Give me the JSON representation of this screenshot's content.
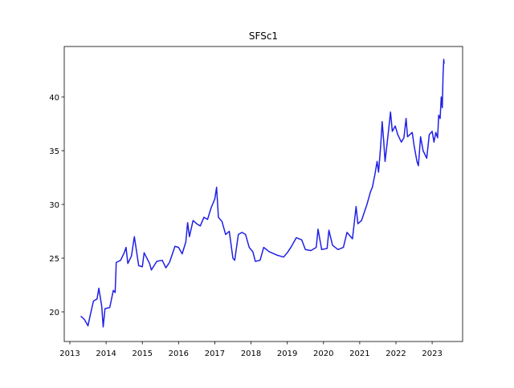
{
  "chart_data": {
    "type": "line",
    "title": "SFSc1",
    "x": [
      2013.3,
      2013.4,
      2013.5,
      2013.55,
      2013.65,
      2013.75,
      2013.8,
      2013.88,
      2013.92,
      2013.97,
      2014.1,
      2014.2,
      2014.25,
      2014.28,
      2014.4,
      2014.5,
      2014.55,
      2014.6,
      2014.7,
      2014.78,
      2014.9,
      2015.0,
      2015.05,
      2015.2,
      2015.25,
      2015.4,
      2015.55,
      2015.65,
      2015.75,
      2015.85,
      2015.9,
      2016.0,
      2016.1,
      2016.2,
      2016.25,
      2016.3,
      2016.4,
      2016.5,
      2016.6,
      2016.7,
      2016.8,
      2016.9,
      2017.0,
      2017.05,
      2017.1,
      2017.2,
      2017.3,
      2017.4,
      2017.5,
      2017.55,
      2017.65,
      2017.75,
      2017.85,
      2017.95,
      2018.05,
      2018.12,
      2018.25,
      2018.35,
      2018.5,
      2018.7,
      2018.9,
      2019.0,
      2019.1,
      2019.25,
      2019.4,
      2019.5,
      2019.65,
      2019.8,
      2019.85,
      2019.95,
      2020.1,
      2020.15,
      2020.25,
      2020.4,
      2020.55,
      2020.65,
      2020.8,
      2020.85,
      2020.9,
      2020.95,
      2021.05,
      2021.2,
      2021.3,
      2021.35,
      2021.42,
      2021.48,
      2021.52,
      2021.58,
      2021.62,
      2021.66,
      2021.7,
      2021.75,
      2021.8,
      2021.85,
      2021.9,
      2021.98,
      2022.05,
      2022.15,
      2022.22,
      2022.28,
      2022.32,
      2022.45,
      2022.5,
      2022.58,
      2022.62,
      2022.68,
      2022.75,
      2022.85,
      2022.92,
      2023.0,
      2023.05,
      2023.1,
      2023.15,
      2023.18,
      2023.22,
      2023.25,
      2023.28,
      2023.3,
      2023.32,
      2023.33
    ],
    "series": [
      {
        "color": "#2020e6",
        "values": [
          19.6,
          19.3,
          18.7,
          19.5,
          21.0,
          21.2,
          22.2,
          20.5,
          18.6,
          20.3,
          20.4,
          22.0,
          21.8,
          24.6,
          24.8,
          25.5,
          26.0,
          24.5,
          25.2,
          27.0,
          24.3,
          24.2,
          25.5,
          24.5,
          23.9,
          24.7,
          24.8,
          24.1,
          24.6,
          25.6,
          26.1,
          26.0,
          25.4,
          26.5,
          28.3,
          27.0,
          28.5,
          28.2,
          28.0,
          28.8,
          28.6,
          29.7,
          30.5,
          31.6,
          28.8,
          28.4,
          27.2,
          27.5,
          25.0,
          24.8,
          27.2,
          27.4,
          27.2,
          26.0,
          25.6,
          24.7,
          24.8,
          26.0,
          25.6,
          25.3,
          25.1,
          25.5,
          26.0,
          26.9,
          26.7,
          25.8,
          25.7,
          26.0,
          27.7,
          25.8,
          25.9,
          27.6,
          26.2,
          25.8,
          26.0,
          27.4,
          26.8,
          28.3,
          29.8,
          28.2,
          28.5,
          30.0,
          31.2,
          31.6,
          32.8,
          34.0,
          33.0,
          35.5,
          37.7,
          36.0,
          34.0,
          35.5,
          37.0,
          38.6,
          36.8,
          37.3,
          36.5,
          35.8,
          36.2,
          38.0,
          36.3,
          36.7,
          35.5,
          34.0,
          33.6,
          36.3,
          35.0,
          34.3,
          36.5,
          36.8,
          35.8,
          36.7,
          36.2,
          38.3,
          38.0,
          40.0,
          39.0,
          42.0,
          43.5,
          43.1
        ]
      }
    ],
    "xlim": [
      2012.845,
      2023.84
    ],
    "xticks": [
      2013,
      2014,
      2015,
      2016,
      2017,
      2018,
      2019,
      2020,
      2021,
      2022,
      2023
    ],
    "ylim": [
      17.24,
      44.7
    ],
    "yticks": [
      20,
      25,
      30,
      35,
      40
    ],
    "grid": false
  }
}
